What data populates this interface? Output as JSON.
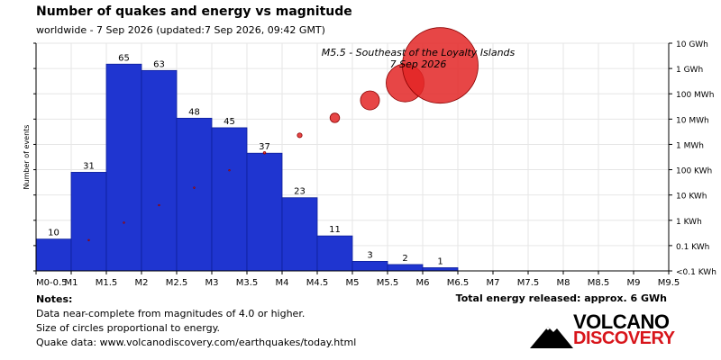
{
  "header": {
    "title": "Number of quakes and energy vs magnitude",
    "subtitle": "worldwide - 7 Sep 2026 (updated:7 Sep 2026, 09:42 GMT)"
  },
  "chart_data": {
    "type": "bar",
    "categories": [
      "M0-0.5",
      "M0.5-1",
      "M1-1.5",
      "M1.5-2",
      "M2-2.5",
      "M2.5-3",
      "M3-3.5",
      "M3.5-4",
      "M4-4.5",
      "M4.5-5",
      "M5-5.5",
      "M5.5-6"
    ],
    "x_tick_labels": [
      "M0-0.5",
      "M1",
      "M1.5",
      "M2",
      "M2.5",
      "M3",
      "M3.5",
      "M4",
      "M4.5",
      "M5",
      "M5.5",
      "M6",
      "M6.5",
      "M7",
      "M7.5",
      "M8",
      "M8.5",
      "M9",
      "M9.5"
    ],
    "values": [
      10,
      31,
      65,
      63,
      48,
      45,
      37,
      23,
      11,
      3,
      2,
      1
    ],
    "ylabel": "Number of events",
    "ylim": [
      0,
      68
    ],
    "energy_axis_labels": [
      "10 GWh",
      "1 GWh",
      "100 MWh",
      "10 MWh",
      "1 MWh",
      "100 KWh",
      "10 KWh",
      "1 KWh",
      "0.1 KWh",
      "<0.1 KWh"
    ],
    "energy_circles_magnitude": [
      0.75,
      1.25,
      1.75,
      2.25,
      2.75,
      3.25,
      3.75,
      4.25,
      4.75,
      5.25,
      5.75
    ],
    "annotation": {
      "line1": "M5.5 - Southeast of the Loyalty Islands",
      "line2": "7 Sep 2026"
    },
    "colors": {
      "bar": "#1f35d0",
      "bar_edge": "#0d1f9a",
      "circle": "#e32626",
      "circle_edge": "#8a0000"
    }
  },
  "notes": {
    "heading": "Notes:",
    "lines": [
      "Data near-complete from magnitudes of 4.0 or higher.",
      "Size of circles proportional to energy.",
      "Quake data: www.volcanodiscovery.com/earthquakes/today.html"
    ]
  },
  "total": "Total energy released: approx. 6 GWh",
  "logo": {
    "word1": "VOLCANO",
    "word2": "DISCOVERY"
  }
}
